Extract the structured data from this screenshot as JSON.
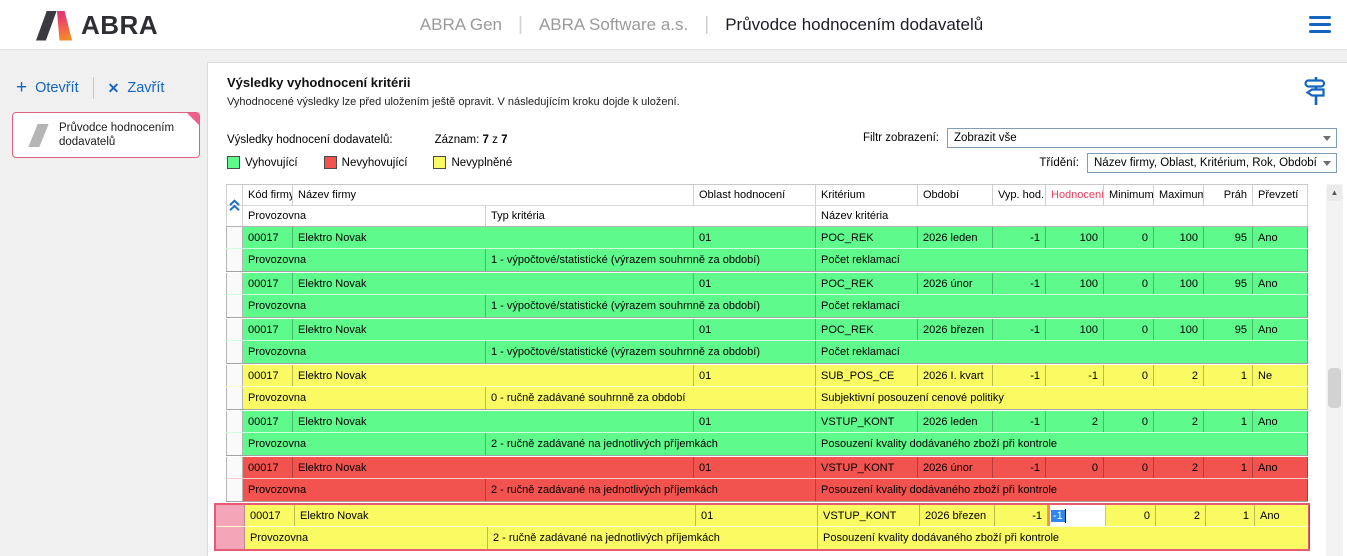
{
  "topbar": {
    "logo": "ABRA",
    "app": "ABRA Gen",
    "sep": "|",
    "company": "ABRA Software a.s.",
    "page_title": "Průvodce hodnocením dodavatelů"
  },
  "sidebar": {
    "open": "Otevřít",
    "close": "Zavřít",
    "wizard_card": "Průvodce hodnocením dodavatelů"
  },
  "panel": {
    "title": "Výsledky vyhodnocení kritérii",
    "subtitle": "Vyhodnocené výsledky lze před uložením ještě opravit. V následujícím kroku dojde k uložení."
  },
  "controls": {
    "results_label": "Výsledky hodnocení dodavatelů:",
    "record_label": "Záznam:",
    "record_current": "7",
    "record_of": "z",
    "record_total": "7",
    "filter_label": "Filtr zobrazení:",
    "filter_value": "Zobrazit vše",
    "sort_label": "Třídění:",
    "sort_value": "Název firmy, Oblast, Kritérium, Rok, Období"
  },
  "legend": {
    "ok": {
      "label": "Vyhovující",
      "color": "#5efa8c"
    },
    "fail": {
      "label": "Nevyhovující",
      "color": "#f2534e"
    },
    "empty": {
      "label": "Nevyplněné",
      "color": "#fafa62"
    }
  },
  "colors": {
    "accent_blue": "#1565c0",
    "selected_row_pink": "#e85976",
    "selection_blue": "#2e86f0",
    "hodnoceni_header_red": "#ef3b5f"
  },
  "icons": {
    "plus": "+",
    "close": "✕",
    "scroll_up": "▲"
  },
  "table": {
    "headers": {
      "kod": "Kód firmy",
      "nazev": "Název firmy",
      "oblast": "Oblast hodnocení",
      "kriterium": "Kritérium",
      "obdobi": "Období",
      "vyp": "Vyp. hod.",
      "hodnoceni": "Hodnocení",
      "minimum": "Minimum",
      "maximum": "Maximum",
      "prah": "Práh",
      "prevzeti": "Převzetí",
      "provozovna": "Provozovna",
      "typ": "Typ kritéria",
      "nazev_kriteria": "Název kritéria"
    },
    "rows": [
      {
        "status": "ok",
        "kod": "00017",
        "nazev": "Elektro Novak",
        "oblast": "01",
        "kriterium": "POC_REK",
        "obdobi": "2026 leden",
        "vyp": "-1",
        "hodnoceni": "100",
        "minimum": "0",
        "maximum": "100",
        "prah": "95",
        "prevzeti": "Ano",
        "provozovna": "Provozovna",
        "typ": "1 - výpočtové/statistické (výrazem souhrnně za období)",
        "nazev_kriteria": "Počet reklamací"
      },
      {
        "status": "ok",
        "kod": "00017",
        "nazev": "Elektro Novak",
        "oblast": "01",
        "kriterium": "POC_REK",
        "obdobi": "2026 únor",
        "vyp": "-1",
        "hodnoceni": "100",
        "minimum": "0",
        "maximum": "100",
        "prah": "95",
        "prevzeti": "Ano",
        "provozovna": "Provozovna",
        "typ": "1 - výpočtové/statistické (výrazem souhrnně za období)",
        "nazev_kriteria": "Počet reklamací"
      },
      {
        "status": "ok",
        "kod": "00017",
        "nazev": "Elektro Novak",
        "oblast": "01",
        "kriterium": "POC_REK",
        "obdobi": "2026 březen",
        "vyp": "-1",
        "hodnoceni": "100",
        "minimum": "0",
        "maximum": "100",
        "prah": "95",
        "prevzeti": "Ano",
        "provozovna": "Provozovna",
        "typ": "1 - výpočtové/statistické (výrazem souhrnně za období)",
        "nazev_kriteria": "Počet reklamací"
      },
      {
        "status": "empty",
        "kod": "00017",
        "nazev": "Elektro Novak",
        "oblast": "01",
        "kriterium": "SUB_POS_CE",
        "obdobi": "2026 I. kvart",
        "vyp": "-1",
        "hodnoceni": "-1",
        "minimum": "0",
        "maximum": "2",
        "prah": "1",
        "prevzeti": "Ne",
        "provozovna": "Provozovna",
        "typ": "0 - ručně zadávané souhrnně za období",
        "nazev_kriteria": "Subjektivní posouzení cenové politiky"
      },
      {
        "status": "ok",
        "kod": "00017",
        "nazev": "Elektro Novak",
        "oblast": "01",
        "kriterium": "VSTUP_KONT",
        "obdobi": "2026 leden",
        "vyp": "-1",
        "hodnoceni": "2",
        "minimum": "0",
        "maximum": "2",
        "prah": "1",
        "prevzeti": "Ano",
        "provozovna": "Provozovna",
        "typ": "2 - ručně zadávané na jednotlivých příjemkách",
        "nazev_kriteria": "Posouzení kvality dodávaného zboží při kontrole"
      },
      {
        "status": "fail",
        "kod": "00017",
        "nazev": "Elektro Novak",
        "oblast": "01",
        "kriterium": "VSTUP_KONT",
        "obdobi": "2026 únor",
        "vyp": "-1",
        "hodnoceni": "0",
        "minimum": "0",
        "maximum": "2",
        "prah": "1",
        "prevzeti": "Ano",
        "provozovna": "Provozovna",
        "typ": "2 - ručně zadávané na jednotlivých příjemkách",
        "nazev_kriteria": "Posouzení kvality dodávaného zboží při kontrole"
      },
      {
        "status": "empty",
        "selected": true,
        "editing": true,
        "kod": "00017",
        "nazev": "Elektro Novak",
        "oblast": "01",
        "kriterium": "VSTUP_KONT",
        "obdobi": "2026 březen",
        "vyp": "-1",
        "hodnoceni": "-1",
        "minimum": "0",
        "maximum": "2",
        "prah": "1",
        "prevzeti": "Ano",
        "provozovna": "Provozovna",
        "typ": "2 - ručně zadávané na jednotlivých příjemkách",
        "nazev_kriteria": "Posouzení kvality dodávaného zboží při kontrole"
      }
    ]
  }
}
